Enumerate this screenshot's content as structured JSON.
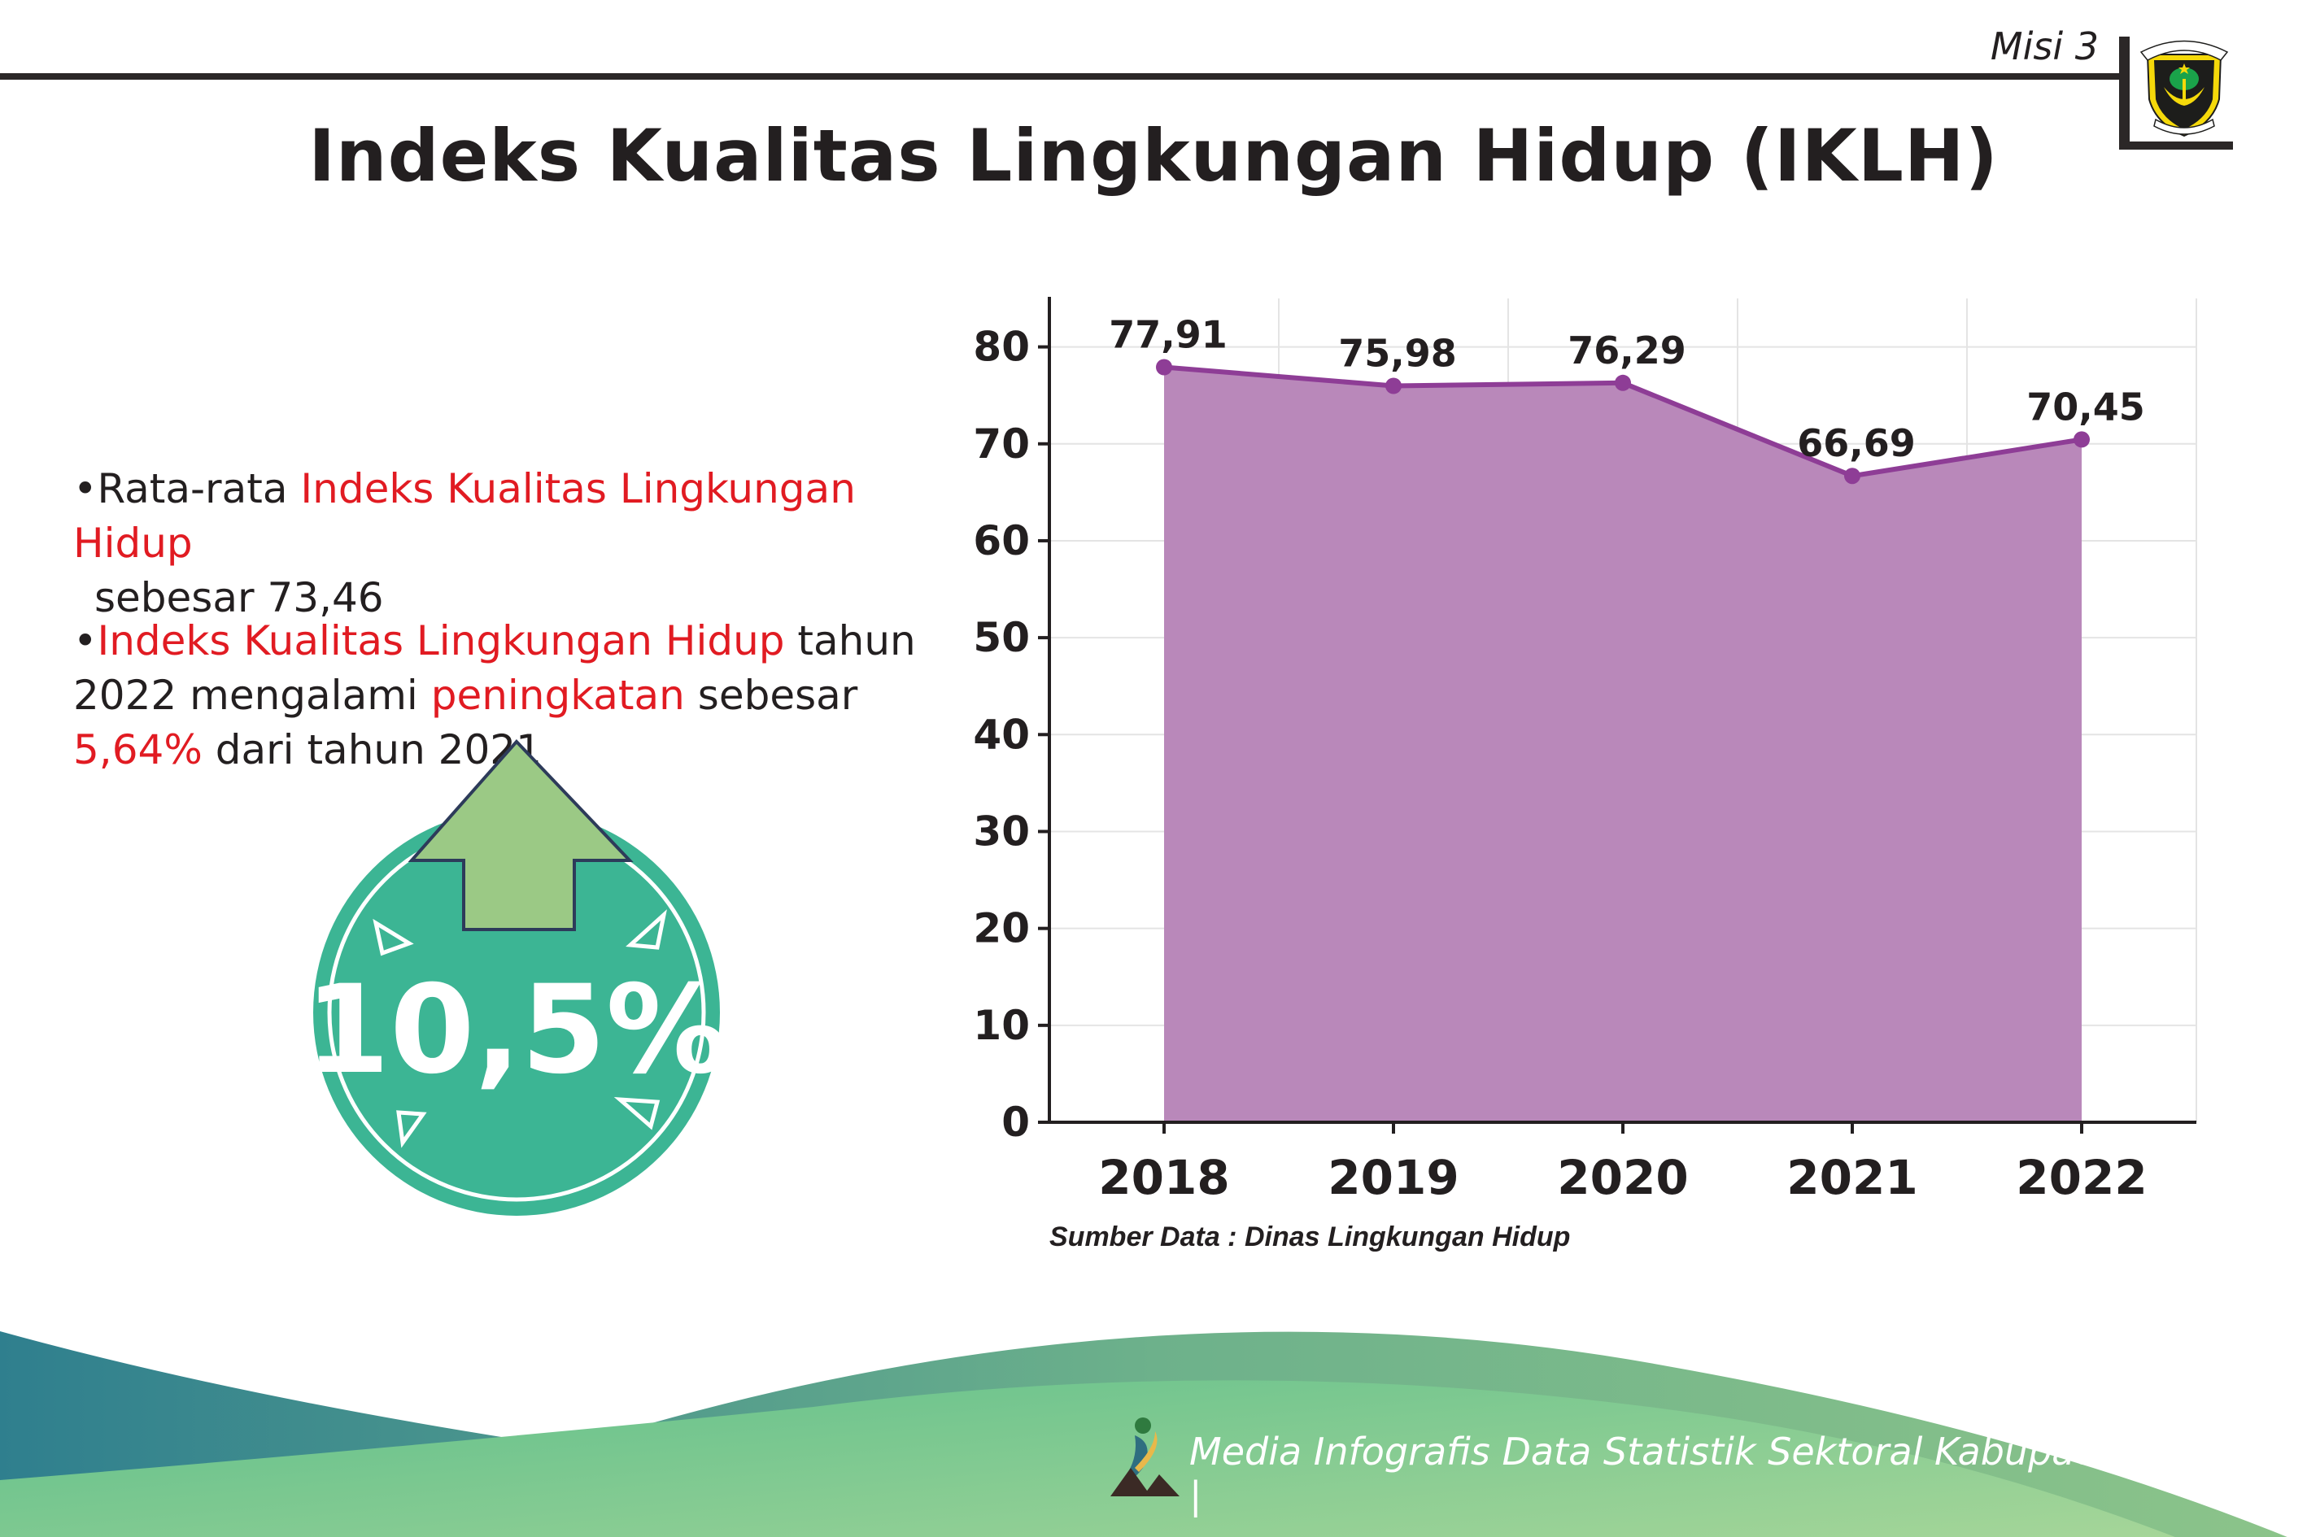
{
  "header": {
    "mission_label": "Misi 3",
    "emblem_text_top": "KABUPATEN",
    "emblem_text_bottom": "MADIUN"
  },
  "title": "Indeks Kualitas Lingkungan Hidup (IKLH)",
  "bullets": [
    {
      "parts": [
        "•Rata-rata ",
        "Indeks Kualitas Lingkungan Hidup",
        " sebesar 73,46"
      ]
    },
    {
      "parts": [
        "•",
        "Indeks Kualitas Lingkungan Hidup",
        " tahun 2022 mengalami ",
        "peningkatan",
        " sebesar ",
        "5,64%",
        " dari tahun 2021"
      ]
    }
  ],
  "badge": {
    "value": "10,5%",
    "icon": "arrow-up-icon",
    "circle_color": "#3cb594",
    "arrow_color": "#9bc985"
  },
  "chart_data": {
    "type": "area",
    "categories": [
      "2018",
      "2019",
      "2020",
      "2021",
      "2022"
    ],
    "values": [
      77.91,
      75.98,
      76.29,
      66.69,
      70.45
    ],
    "data_labels": [
      "77,91",
      "75,98",
      "76,29",
      "66,69",
      "70,45"
    ],
    "yticks": [
      0,
      10,
      20,
      30,
      40,
      50,
      60,
      70,
      80
    ],
    "ylim": [
      0,
      85
    ],
    "grid": true,
    "fill_color": "#b988ba",
    "line_color": "#8e3d96",
    "title": "",
    "xlabel": "",
    "ylabel": ""
  },
  "source": "Sumber Data : Dinas Lingkungan Hidup",
  "footer": {
    "text": "Media Infografis Data Statistik Sektoral Kabupaten Madiun |"
  }
}
